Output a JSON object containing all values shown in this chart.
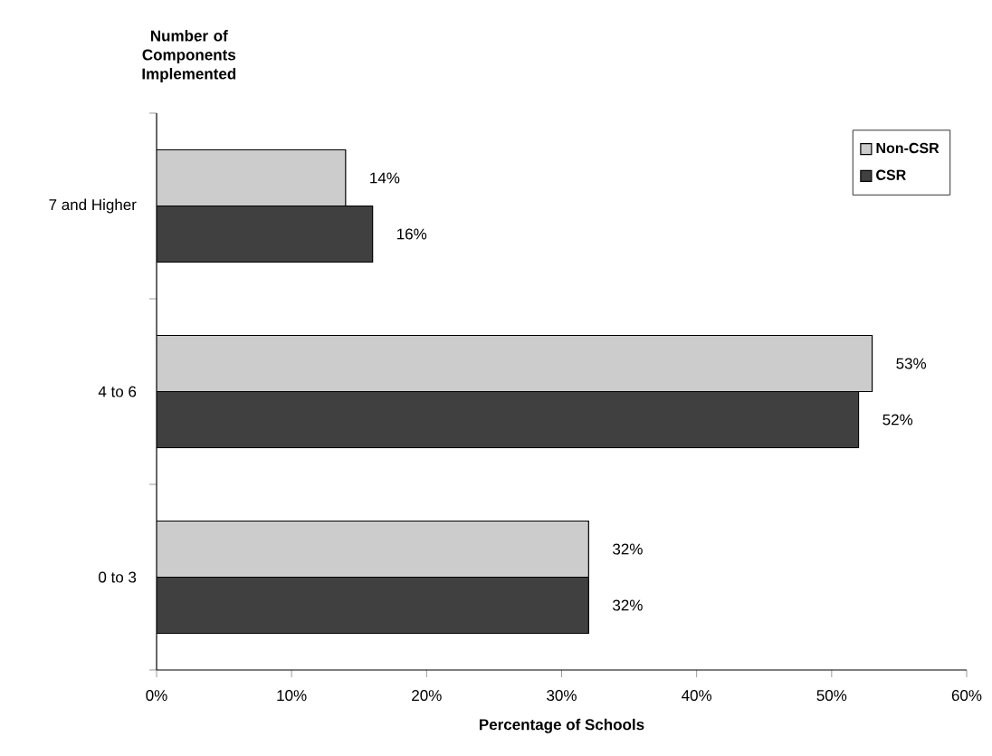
{
  "chart_data": {
    "type": "bar",
    "orientation": "horizontal",
    "xlabel": "Percentage of Schools",
    "ylabel": "Number of Components Implemented",
    "categories": [
      "7 and Higher",
      "4 to 6",
      "0 to 3"
    ],
    "series": [
      {
        "name": "Non-CSR",
        "color": "#cccccc",
        "values": [
          14,
          53,
          32
        ],
        "value_labels": [
          "14%",
          "53%",
          "32%"
        ]
      },
      {
        "name": "CSR",
        "color": "#404040",
        "values": [
          16,
          52,
          32
        ],
        "value_labels": [
          "16%",
          "52%",
          "32%"
        ]
      }
    ],
    "xlim": [
      0,
      60
    ],
    "xticks": [
      {
        "value": 0,
        "label": "0%"
      },
      {
        "value": 10,
        "label": "10%"
      },
      {
        "value": 20,
        "label": "20%"
      },
      {
        "value": 30,
        "label": "30%"
      },
      {
        "value": 40,
        "label": "40%"
      },
      {
        "value": 50,
        "label": "50%"
      },
      {
        "value": 60,
        "label": "60%"
      }
    ],
    "legend": "top right"
  }
}
